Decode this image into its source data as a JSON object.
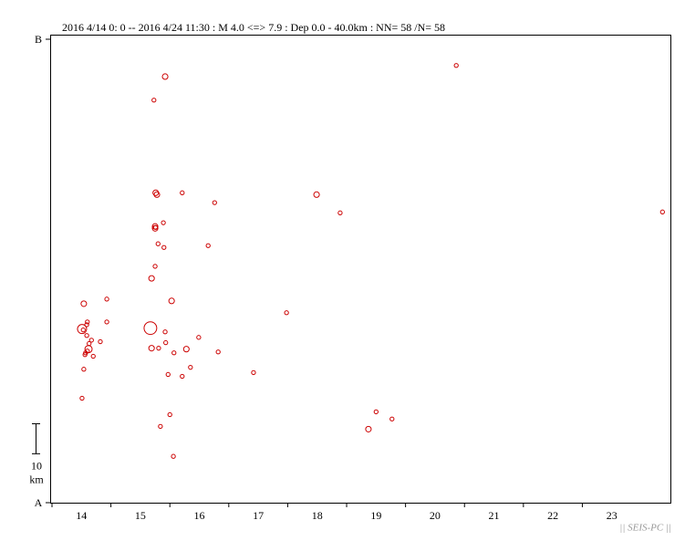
{
  "chart_data": {
    "type": "scatter",
    "title": "2016 4/14 0: 0 -- 2016 4/24 11:30  : M 4.0 <=> 7.9   :  Dep 0.0 - 40.0km :  NN= 58 /N= 58",
    "watermark": "|| SEIS-PC ||",
    "xlim": [
      14,
      24.479
    ],
    "ylim": [
      0,
      150
    ],
    "xticks": [
      {
        "value": 14.5,
        "label": "14"
      },
      {
        "value": 15.5,
        "label": "15"
      },
      {
        "value": 16.5,
        "label": "16"
      },
      {
        "value": 17.5,
        "label": "17"
      },
      {
        "value": 18.5,
        "label": "18"
      },
      {
        "value": 19.5,
        "label": "19"
      },
      {
        "value": 20.5,
        "label": "20"
      },
      {
        "value": 21.5,
        "label": "21"
      },
      {
        "value": 22.5,
        "label": "22"
      },
      {
        "value": 23.5,
        "label": "23"
      }
    ],
    "yticks": [
      {
        "value": 0,
        "label": "A"
      },
      {
        "value": 150,
        "label": "B"
      }
    ],
    "scale_bar": {
      "length": 10,
      "unit": "km"
    },
    "series": [
      {
        "color": "#cc0000",
        "x": [
          20.86,
          15.92,
          15.73,
          15.76,
          15.78,
          16.21,
          16.76,
          18.49,
          18.89,
          24.36,
          15.75,
          15.75,
          15.89,
          15.8,
          15.9,
          16.65,
          15.75,
          15.69,
          14.54,
          14.93,
          16.03,
          17.98,
          14.6,
          14.59,
          14.93,
          14.51,
          15.67,
          15.92,
          14.59,
          16.49,
          14.67,
          14.63,
          14.82,
          15.93,
          14.62,
          15.69,
          15.81,
          16.28,
          16.82,
          16.07,
          14.56,
          14.7,
          14.54,
          16.35,
          15.97,
          16.21,
          17.42,
          14.51,
          19.5,
          16.0,
          19.77,
          15.84,
          19.37,
          16.06,
          14.57,
          14.6,
          15.76,
          14.53
        ],
        "values": [
          141.5,
          137.9,
          130.3,
          100.3,
          99.7,
          100.3,
          97.1,
          99.7,
          93.8,
          94.1,
          89.4,
          88.8,
          90.6,
          83.8,
          82.6,
          83.2,
          76.5,
          72.6,
          64.4,
          65.9,
          65.3,
          61.5,
          58.5,
          57.6,
          58.5,
          56.2,
          56.5,
          55.3,
          54.1,
          53.5,
          52.6,
          51.5,
          52.1,
          51.8,
          49.7,
          50.0,
          50.0,
          49.7,
          48.8,
          48.5,
          47.9,
          47.4,
          43.2,
          43.8,
          41.5,
          40.9,
          42.1,
          33.8,
          29.4,
          28.5,
          27.1,
          24.7,
          23.8,
          15.0,
          48.5,
          49.1,
          89.1,
          55.9
        ],
        "sizes": [
          4.1,
          4.7,
          4.1,
          4.7,
          4.7,
          4.1,
          4.1,
          4.7,
          4.1,
          4.1,
          4.7,
          4.7,
          4.1,
          4.1,
          4.1,
          4.1,
          4.1,
          4.7,
          4.7,
          4.1,
          4.7,
          4.1,
          4.1,
          4.1,
          4.1,
          6.0,
          7.3,
          4.1,
          4.1,
          4.1,
          4.1,
          4.1,
          4.1,
          4.1,
          5.3,
          4.7,
          4.1,
          4.7,
          4.1,
          4.1,
          4.1,
          4.1,
          4.1,
          4.1,
          4.1,
          4.1,
          4.1,
          4.1,
          4.1,
          4.1,
          4.1,
          4.1,
          4.7,
          4.1,
          4.1,
          4.1,
          4.1,
          4.1
        ]
      }
    ]
  }
}
